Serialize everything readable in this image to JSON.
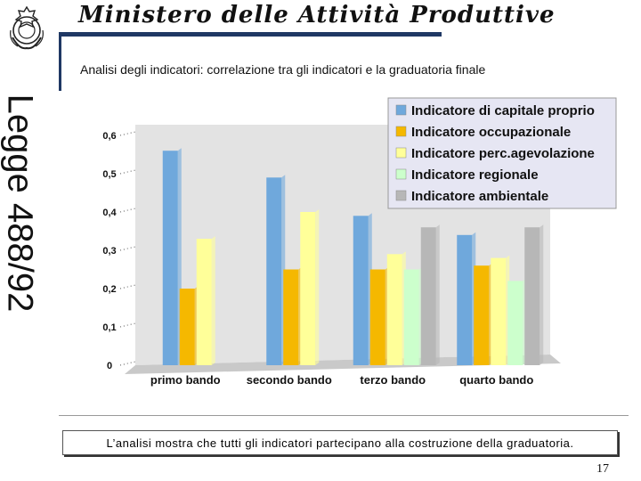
{
  "header": {
    "ministry": "Ministero delle Attività Produttive",
    "vertical_label": "Legge 488/92",
    "subtitle": "Analisi degli indicatori: correlazione tra gli indicatori e la graduatoria finale"
  },
  "note": "L’analisi mostra che tutti gli indicatori partecipano alla costruzione della graduatoria.",
  "page_number": "17",
  "chart_data": {
    "type": "bar",
    "categories": [
      "primo bando",
      "secondo bando",
      "terzo bando",
      "quarto bando"
    ],
    "series": [
      {
        "name": "Indicatore di capitale proprio",
        "color": "#6fa8dc",
        "values": [
          0.56,
          0.49,
          0.39,
          0.34
        ]
      },
      {
        "name": "Indicatore occupazionale",
        "color": "#f5b800",
        "values": [
          0.2,
          0.25,
          0.25,
          0.26
        ]
      },
      {
        "name": "Indicatore perc.agevolazione",
        "color": "#ffff99",
        "values": [
          0.33,
          0.4,
          0.29,
          0.28
        ]
      },
      {
        "name": "Indicatore regionale",
        "color": "#ccffcc",
        "values": [
          null,
          null,
          0.25,
          0.22
        ]
      },
      {
        "name": "Indicatore ambientale",
        "color": "#b7b7b7",
        "values": [
          null,
          null,
          0.36,
          0.36
        ]
      }
    ],
    "yticks": [
      "0",
      "0,1",
      "0,2",
      "0,3",
      "0,4",
      "0,5",
      "0,6"
    ],
    "ylim": [
      0,
      0.6
    ],
    "legend_position": "top-right",
    "grid": false
  }
}
